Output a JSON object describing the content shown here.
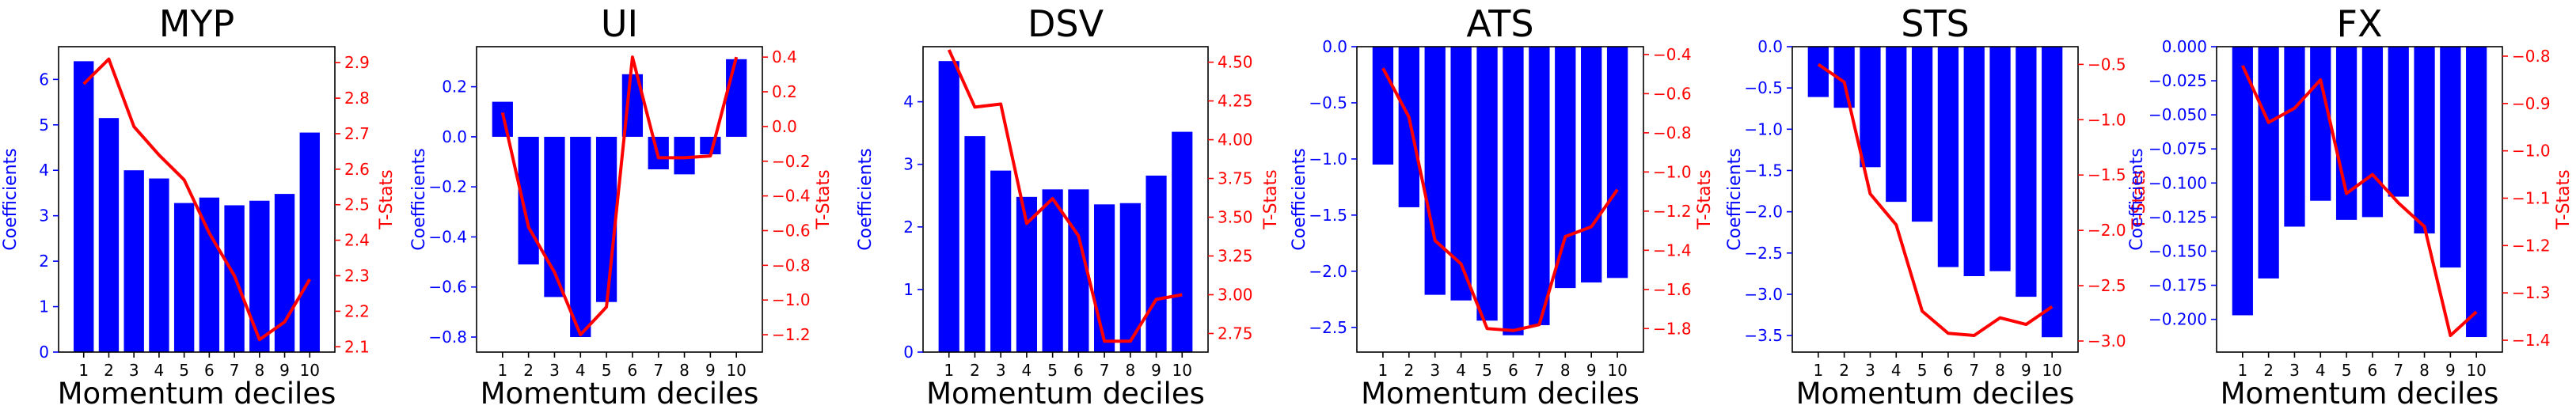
{
  "colors": {
    "bars": "#0000ff",
    "line": "#ff0000",
    "left_axis": "#0000ff",
    "right_axis": "#ff0000",
    "text": "#000000"
  },
  "chart_data": [
    {
      "type": "bar",
      "title": "MYP",
      "xlabel": "Momentum deciles",
      "ylabel": "Coefficients",
      "y2label": "T-Stats",
      "categories": [
        "1",
        "2",
        "3",
        "4",
        "5",
        "6",
        "7",
        "8",
        "9",
        "10"
      ],
      "series": [
        {
          "axis": "left",
          "type": "bar",
          "values": [
            6.4,
            5.15,
            4.0,
            3.82,
            3.28,
            3.4,
            3.23,
            3.33,
            3.48,
            4.83
          ]
        },
        {
          "axis": "right",
          "type": "line",
          "values": [
            2.84,
            2.91,
            2.72,
            2.64,
            2.57,
            2.42,
            2.3,
            2.12,
            2.17,
            2.29
          ]
        }
      ],
      "ylim": [
        0,
        6.72
      ],
      "y2lim": [
        2.085,
        2.945
      ],
      "yticks": [
        0,
        1,
        2,
        3,
        4,
        5,
        6
      ],
      "y2ticks": [
        2.1,
        2.2,
        2.3,
        2.4,
        2.5,
        2.6,
        2.7,
        2.8,
        2.9
      ],
      "yticklabels": [
        "0",
        "1",
        "2",
        "3",
        "4",
        "5",
        "6"
      ],
      "y2ticklabels": [
        "2.1",
        "2.2",
        "2.3",
        "2.4",
        "2.5",
        "2.6",
        "2.7",
        "2.8",
        "2.9"
      ]
    },
    {
      "type": "bar",
      "title": "UI",
      "xlabel": "Momentum deciles",
      "ylabel": "Coefficients",
      "y2label": "T-Stats",
      "categories": [
        "1",
        "2",
        "3",
        "4",
        "5",
        "6",
        "7",
        "8",
        "9",
        "10"
      ],
      "series": [
        {
          "axis": "left",
          "type": "bar",
          "values": [
            0.14,
            -0.51,
            -0.64,
            -0.8,
            -0.66,
            0.25,
            -0.13,
            -0.15,
            -0.07,
            0.31
          ]
        },
        {
          "axis": "right",
          "type": "line",
          "values": [
            0.08,
            -0.58,
            -0.84,
            -1.2,
            -1.04,
            0.4,
            -0.18,
            -0.18,
            -0.17,
            0.4
          ]
        }
      ],
      "ylim": [
        -0.86,
        0.36
      ],
      "y2lim": [
        -1.3,
        0.46
      ],
      "yticks": [
        -0.8,
        -0.6,
        -0.4,
        -0.2,
        0.0,
        0.2
      ],
      "y2ticks": [
        -1.2,
        -1.0,
        -0.8,
        -0.6,
        -0.4,
        -0.2,
        0.0,
        0.2,
        0.4
      ],
      "yticklabels": [
        "−0.8",
        "−0.6",
        "−0.4",
        "−0.2",
        "0.0",
        "0.2"
      ],
      "y2ticklabels": [
        "−1.2",
        "−1.0",
        "−0.8",
        "−0.6",
        "−0.4",
        "−0.2",
        "0.0",
        "0.2",
        "0.4"
      ]
    },
    {
      "type": "bar",
      "title": "DSV",
      "xlabel": "Momentum deciles",
      "ylabel": "Coefficients",
      "y2label": "T-Stats",
      "categories": [
        "1",
        "2",
        "3",
        "4",
        "5",
        "6",
        "7",
        "8",
        "9",
        "10"
      ],
      "series": [
        {
          "axis": "left",
          "type": "bar",
          "values": [
            4.65,
            3.45,
            2.9,
            2.48,
            2.6,
            2.6,
            2.36,
            2.38,
            2.82,
            3.52
          ]
        },
        {
          "axis": "right",
          "type": "line",
          "values": [
            4.58,
            4.21,
            4.23,
            3.46,
            3.62,
            3.38,
            2.7,
            2.7,
            2.97,
            3.0
          ]
        }
      ],
      "ylim": [
        0,
        4.88
      ],
      "y2lim": [
        2.63,
        4.6
      ],
      "yticks": [
        0,
        1,
        2,
        3,
        4
      ],
      "y2ticks": [
        2.75,
        3.0,
        3.25,
        3.5,
        3.75,
        4.0,
        4.25,
        4.5
      ],
      "yticklabels": [
        "0",
        "1",
        "2",
        "3",
        "4"
      ],
      "y2ticklabels": [
        "2.75",
        "3.00",
        "3.25",
        "3.50",
        "3.75",
        "4.00",
        "4.25",
        "4.50"
      ]
    },
    {
      "type": "bar",
      "title": "ATS",
      "xlabel": "Momentum deciles",
      "ylabel": "Coefficients",
      "y2label": "T-Stats",
      "categories": [
        "1",
        "2",
        "3",
        "4",
        "5",
        "6",
        "7",
        "8",
        "9",
        "10"
      ],
      "series": [
        {
          "axis": "left",
          "type": "bar",
          "values": [
            -1.05,
            -1.43,
            -2.21,
            -2.26,
            -2.44,
            -2.57,
            -2.48,
            -2.15,
            -2.1,
            -2.06
          ]
        },
        {
          "axis": "right",
          "type": "line",
          "values": [
            -0.47,
            -0.72,
            -1.35,
            -1.47,
            -1.8,
            -1.81,
            -1.78,
            -1.33,
            -1.28,
            -1.09
          ]
        }
      ],
      "ylim": [
        -2.72,
        0.0
      ],
      "y2lim": [
        -1.92,
        -0.36
      ],
      "yticks": [
        -2.5,
        -2.0,
        -1.5,
        -1.0,
        -0.5,
        0.0
      ],
      "y2ticks": [
        -1.8,
        -1.6,
        -1.4,
        -1.2,
        -1.0,
        -0.8,
        -0.6,
        -0.4
      ],
      "yticklabels": [
        "−2.5",
        "−2.0",
        "−1.5",
        "−1.0",
        "−0.5",
        "0.0"
      ],
      "y2ticklabels": [
        "−1.8",
        "−1.6",
        "−1.4",
        "−1.2",
        "−1.0",
        "−0.8",
        "−0.6",
        "−0.4"
      ]
    },
    {
      "type": "bar",
      "title": "STS",
      "xlabel": "Momentum deciles",
      "ylabel": "Coefficients",
      "y2label": "T-Stats",
      "categories": [
        "1",
        "2",
        "3",
        "4",
        "5",
        "6",
        "7",
        "8",
        "9",
        "10"
      ],
      "series": [
        {
          "axis": "left",
          "type": "bar",
          "values": [
            -0.61,
            -0.74,
            -1.46,
            -1.88,
            -2.12,
            -2.67,
            -2.78,
            -2.72,
            -3.03,
            -3.52
          ]
        },
        {
          "axis": "right",
          "type": "line",
          "values": [
            -0.5,
            -0.66,
            -1.67,
            -1.95,
            -2.73,
            -2.93,
            -2.95,
            -2.79,
            -2.85,
            -2.69
          ]
        }
      ],
      "ylim": [
        -3.7,
        0.0
      ],
      "y2lim": [
        -3.1,
        -0.34
      ],
      "yticks": [
        -3.5,
        -3.0,
        -2.5,
        -2.0,
        -1.5,
        -1.0,
        -0.5,
        0.0
      ],
      "y2ticks": [
        -3.0,
        -2.5,
        -2.0,
        -1.5,
        -1.0,
        -0.5
      ],
      "yticklabels": [
        "−3.5",
        "−3.0",
        "−2.5",
        "−2.0",
        "−1.5",
        "−1.0",
        "−0.5",
        "0.0"
      ],
      "y2ticklabels": [
        "−3.0",
        "−2.5",
        "−2.0",
        "−1.5",
        "−1.0",
        "−0.5"
      ]
    },
    {
      "type": "bar",
      "title": "FX",
      "xlabel": "Momentum deciles",
      "ylabel": "Coefficients",
      "y2label": "T-Stats",
      "categories": [
        "1",
        "2",
        "3",
        "4",
        "5",
        "6",
        "7",
        "8",
        "9",
        "10"
      ],
      "series": [
        {
          "axis": "left",
          "type": "bar",
          "values": [
            -0.197,
            -0.17,
            -0.132,
            -0.113,
            -0.127,
            -0.125,
            -0.11,
            -0.137,
            -0.162,
            -0.213
          ]
        },
        {
          "axis": "right",
          "type": "line",
          "values": [
            -0.82,
            -0.94,
            -0.91,
            -0.85,
            -1.09,
            -1.05,
            -1.11,
            -1.16,
            -1.39,
            -1.34
          ]
        }
      ],
      "ylim": [
        -0.224,
        0.0
      ],
      "y2lim": [
        -1.425,
        -0.78
      ],
      "yticks": [
        -0.2,
        -0.175,
        -0.15,
        -0.125,
        -0.1,
        -0.075,
        -0.05,
        -0.025,
        0.0
      ],
      "y2ticks": [
        -1.4,
        -1.3,
        -1.2,
        -1.1,
        -1.0,
        -0.9,
        -0.8
      ],
      "yticklabels": [
        "−0.200",
        "−0.175",
        "−0.150",
        "−0.125",
        "−0.100",
        "−0.075",
        "−0.050",
        "−0.025",
        "0.000"
      ],
      "y2ticklabels": [
        "−1.4",
        "−1.3",
        "−1.2",
        "−1.1",
        "−1.0",
        "−0.9",
        "−0.8"
      ]
    }
  ]
}
